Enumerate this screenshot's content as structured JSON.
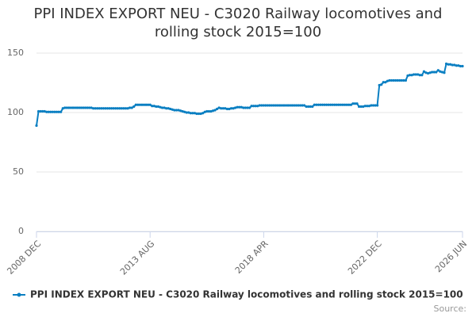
{
  "chart_data": {
    "type": "line",
    "title": "PPI INDEX EXPORT NEU - C3020 Railway locomotives and rolling stock 2015=100",
    "source": "Source:",
    "categories": [
      "2008 DEC",
      null,
      null,
      null,
      null,
      null,
      null,
      null,
      null,
      null,
      null,
      null,
      null,
      null,
      null,
      null,
      null,
      null,
      null,
      null,
      null,
      null,
      null,
      null,
      null,
      null,
      null,
      null,
      null,
      null,
      null,
      null,
      null,
      null,
      null,
      null,
      null,
      null,
      null,
      null,
      null,
      null,
      null,
      null,
      null,
      null,
      null,
      null,
      null,
      null,
      null,
      null,
      null,
      null,
      null,
      null,
      "2013 AUG",
      null,
      null,
      null,
      null,
      null,
      null,
      null,
      null,
      null,
      null,
      null,
      null,
      null,
      null,
      null,
      null,
      null,
      null,
      null,
      null,
      null,
      null,
      null,
      null,
      null,
      null,
      null,
      null,
      null,
      null,
      null,
      null,
      null,
      null,
      null,
      null,
      null,
      null,
      null,
      null,
      null,
      null,
      null,
      null,
      null,
      null,
      null,
      null,
      null,
      null,
      null,
      null,
      null,
      null,
      null,
      "2018 APR",
      null,
      null,
      null,
      null,
      null,
      null,
      null,
      null,
      null,
      null,
      null,
      null,
      null,
      null,
      null,
      null,
      null,
      null,
      null,
      null,
      null,
      null,
      null,
      null,
      null,
      null,
      null,
      null,
      null,
      null,
      null,
      null,
      null,
      null,
      null,
      null,
      null,
      null,
      null,
      null,
      null,
      null,
      null,
      null,
      null,
      null,
      null,
      null,
      null,
      null,
      null,
      null,
      null,
      null,
      null,
      "2022 DEC",
      null,
      null,
      null,
      null,
      null,
      null,
      null,
      null,
      null,
      null,
      null,
      null,
      null,
      null,
      null,
      null,
      null,
      null,
      null,
      null,
      null,
      null,
      null,
      null,
      null,
      null,
      null,
      null,
      null,
      null,
      null,
      null,
      null,
      null,
      null,
      null,
      null,
      null,
      null,
      null,
      null,
      "2026 JUN"
    ],
    "series": [
      {
        "name": "PPI INDEX EXPORT NEU - C3020 Railway locomotives and rolling stock 2015=100",
        "color": "#0a7fc2",
        "values": [
          89,
          101,
          101,
          101,
          101,
          100.5,
          100.5,
          100.5,
          100.5,
          100.5,
          100.5,
          100.5,
          100.5,
          103.5,
          104,
          104,
          104,
          104,
          104,
          104,
          104,
          104,
          104,
          104,
          104,
          104,
          104,
          104,
          103.5,
          103.5,
          103.5,
          103.5,
          103.5,
          103.5,
          103.5,
          103.5,
          103.5,
          103.5,
          103.5,
          103.5,
          103.5,
          103.5,
          103.5,
          103.5,
          103.5,
          103.5,
          104,
          104,
          105,
          106.5,
          106.5,
          106.5,
          106.5,
          106.5,
          106.5,
          106.5,
          106.5,
          105.5,
          105.5,
          105,
          105,
          104.5,
          104,
          104,
          103.5,
          103.5,
          103,
          102.5,
          102,
          102,
          102,
          101.5,
          101,
          100.5,
          100,
          100,
          99.5,
          99.5,
          99.5,
          99,
          99,
          99,
          99.5,
          100.5,
          101,
          101,
          101,
          101.5,
          102,
          103,
          104,
          103.5,
          103.5,
          103.5,
          103,
          103,
          103.5,
          103.5,
          104,
          104.5,
          104.5,
          104.5,
          104,
          104,
          104,
          104,
          105.5,
          105.5,
          105.5,
          105.5,
          106,
          106,
          106,
          106,
          106,
          106,
          106,
          106,
          106,
          106,
          106,
          106,
          106,
          106,
          106,
          106,
          106,
          106,
          106,
          106,
          106,
          106,
          106,
          105,
          105,
          105,
          105,
          106.5,
          106.5,
          106.5,
          106.5,
          106.5,
          106.5,
          106.5,
          106.5,
          106.5,
          106.5,
          106.5,
          106.5,
          106.5,
          106.5,
          106.5,
          106.5,
          106.5,
          106.5,
          106.5,
          107.5,
          107.5,
          107.5,
          105,
          105,
          105,
          105.5,
          105.5,
          105.5,
          106,
          106,
          106,
          106,
          123,
          123.5,
          125.5,
          125.5,
          126.5,
          127,
          127,
          127,
          127,
          127,
          127,
          127,
          127,
          127,
          131,
          131.5,
          131.5,
          132,
          132,
          132,
          131.5,
          131.5,
          134.5,
          133.5,
          133,
          133.5,
          134,
          134,
          134,
          135.5,
          134.5,
          134,
          133.5,
          141,
          140.5,
          140.5,
          140,
          140,
          139.5,
          139.5,
          139,
          139
        ]
      }
    ],
    "ylim": [
      0,
      150
    ],
    "yticks": [
      0,
      50,
      100,
      150
    ],
    "grid": true
  }
}
